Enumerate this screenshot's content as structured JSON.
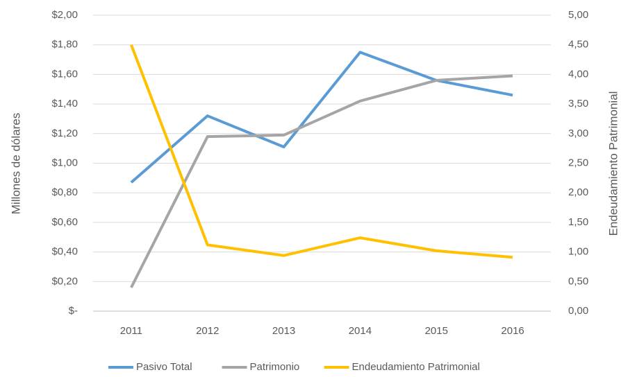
{
  "chart_data": {
    "type": "line",
    "categories": [
      "2011",
      "2012",
      "2013",
      "2014",
      "2015",
      "2016"
    ],
    "y_label": "Millones de dólares",
    "y2_label": "Endeudamiento Patrimonial",
    "ylim": [
      0,
      2
    ],
    "yticks": [
      {
        "value": 0,
        "label": "$-"
      },
      {
        "value": 0.2,
        "label": "$0,20"
      },
      {
        "value": 0.4,
        "label": "$0,40"
      },
      {
        "value": 0.6,
        "label": "$0,60"
      },
      {
        "value": 0.8,
        "label": "$0,80"
      },
      {
        "value": 1,
        "label": "$1,00"
      },
      {
        "value": 1.2,
        "label": "$1,20"
      },
      {
        "value": 1.4,
        "label": "$1,40"
      },
      {
        "value": 1.6,
        "label": "$1,60"
      },
      {
        "value": 1.8,
        "label": "$1,80"
      },
      {
        "value": 2,
        "label": "$2,00"
      }
    ],
    "y2lim": [
      0,
      5
    ],
    "y2ticks": [
      {
        "value": 0,
        "label": "0,00"
      },
      {
        "value": 0.5,
        "label": "0,50"
      },
      {
        "value": 1,
        "label": "1,00"
      },
      {
        "value": 1.5,
        "label": "1,50"
      },
      {
        "value": 2,
        "label": "2,00"
      },
      {
        "value": 2.5,
        "label": "2,50"
      },
      {
        "value": 3,
        "label": "3,00"
      },
      {
        "value": 3.5,
        "label": "3,50"
      },
      {
        "value": 4,
        "label": "4,00"
      },
      {
        "value": 4.5,
        "label": "4,50"
      },
      {
        "value": 5,
        "label": "5,00"
      }
    ],
    "grid": true,
    "legend": "bottom",
    "series": [
      {
        "name": "Pasivo Total",
        "color": "#5b9bd5",
        "values": [
          0.87,
          1.32,
          1.11,
          1.75,
          1.56,
          1.46
        ]
      },
      {
        "name": "Patrimonio",
        "color": "#a5a5a5",
        "values": [
          0.16,
          1.18,
          1.19,
          1.42,
          1.56,
          1.59
        ]
      },
      {
        "name": "Endeudamiento Patrimonial",
        "color": "#ffc000",
        "axis": "y2",
        "values": [
          4.5,
          1.12,
          0.94,
          1.24,
          1.02,
          0.91
        ]
      }
    ]
  }
}
